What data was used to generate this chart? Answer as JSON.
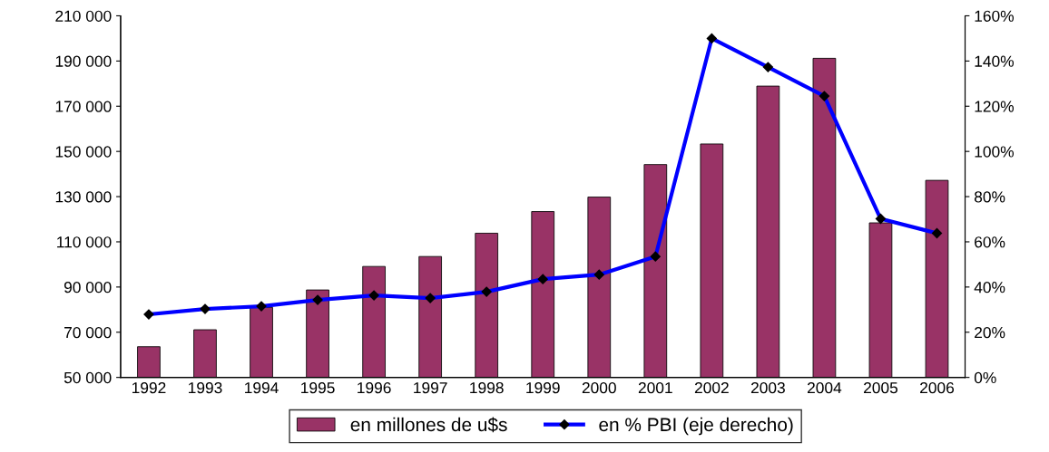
{
  "chart_data": {
    "type": "bar",
    "categories": [
      "1992",
      "1993",
      "1994",
      "1995",
      "1996",
      "1997",
      "1998",
      "1999",
      "2000",
      "2001",
      "2002",
      "2003",
      "2004",
      "2005",
      "2006"
    ],
    "series": [
      {
        "name": "en millones de u$s",
        "color": "#993366",
        "values": [
          63600,
          71100,
          81000,
          88700,
          99100,
          103500,
          113800,
          123400,
          129800,
          144200,
          153300,
          178900,
          191200,
          118400,
          137200
        ]
      },
      {
        "name": "en % PBI (eje derecho)",
        "type": "line",
        "axis": "y2",
        "color": "#0000ff",
        "marker": "diamond",
        "values": [
          27.9,
          30.3,
          31.5,
          34.3,
          36.3,
          35.1,
          37.9,
          43.5,
          45.5,
          53.5,
          150,
          137.3,
          124.5,
          70.2,
          63.8
        ]
      }
    ],
    "ylim": [
      50000,
      210000
    ],
    "yticks": [
      {
        "value": 50000,
        "label": "50 000"
      },
      {
        "value": 70000,
        "label": "70 000"
      },
      {
        "value": 90000,
        "label": "90 000"
      },
      {
        "value": 110000,
        "label": "110 000"
      },
      {
        "value": 130000,
        "label": "130 000"
      },
      {
        "value": 150000,
        "label": "150 000"
      },
      {
        "value": 170000,
        "label": "170 000"
      },
      {
        "value": 190000,
        "label": "190 000"
      },
      {
        "value": 210000,
        "label": "210 000"
      }
    ],
    "y2lim": [
      0,
      160
    ],
    "y2ticks": [
      {
        "value": 0,
        "label": "0%"
      },
      {
        "value": 20,
        "label": "20%"
      },
      {
        "value": 40,
        "label": "40%"
      },
      {
        "value": 60,
        "label": "60%"
      },
      {
        "value": 80,
        "label": "80%"
      },
      {
        "value": 100,
        "label": "100%"
      },
      {
        "value": 120,
        "label": "120%"
      },
      {
        "value": 140,
        "label": "140%"
      },
      {
        "value": 160,
        "label": "160%"
      }
    ],
    "grid": false,
    "legend": "bottom"
  }
}
